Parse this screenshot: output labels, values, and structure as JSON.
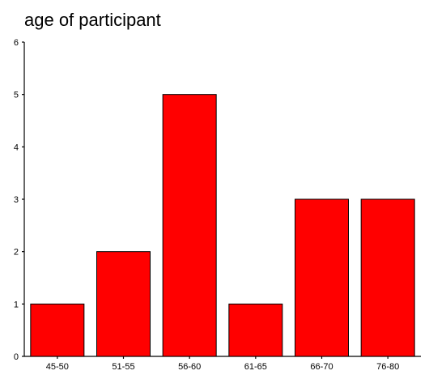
{
  "chart_data": {
    "type": "bar",
    "title": "age of participant",
    "xlabel": "",
    "ylabel": "",
    "categories": [
      "45-50",
      "51-55",
      "56-60",
      "61-65",
      "66-70",
      "76-80"
    ],
    "values": [
      1,
      2,
      5,
      1,
      3,
      3
    ],
    "ylim": [
      0,
      6
    ],
    "yticks": [
      0,
      1,
      2,
      3,
      4,
      5,
      6
    ],
    "grid": false,
    "legend": "none",
    "colors": {
      "bar": "#ff0000",
      "outline": "#000000",
      "axis": "#000000",
      "background": "#ffffff"
    }
  }
}
